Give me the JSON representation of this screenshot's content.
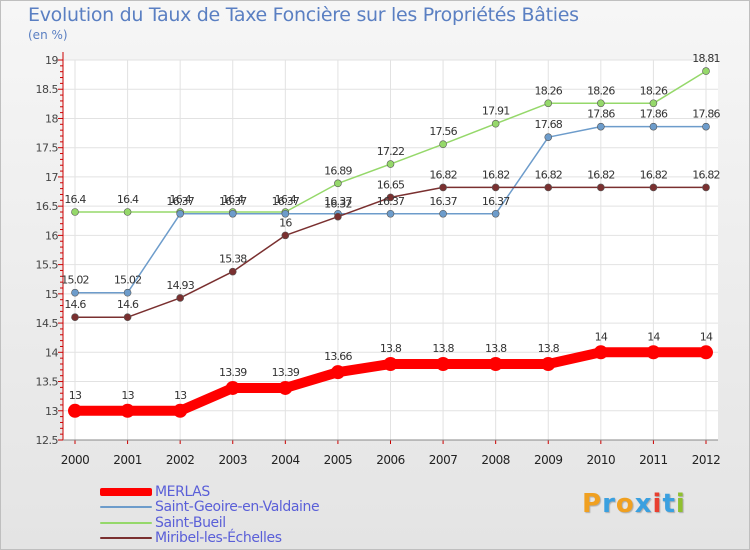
{
  "chart_data": {
    "type": "line",
    "title": "Evolution du Taux de Taxe Foncière sur les Propriétés Bâties",
    "subtitle": "(en %)",
    "x": [
      "2000",
      "2001",
      "2002",
      "2003",
      "2004",
      "2005",
      "2006",
      "2007",
      "2008",
      "2009",
      "2010",
      "2011",
      "2012"
    ],
    "ylim": [
      12.5,
      19
    ],
    "yticks": [
      "12.5",
      "13",
      "13.5",
      "14",
      "14.5",
      "15",
      "15.5",
      "16",
      "16.5",
      "17",
      "17.5",
      "18",
      "18.5",
      "19"
    ],
    "ytick_values": [
      12.5,
      13,
      13.5,
      14,
      14.5,
      15,
      15.5,
      16,
      16.5,
      17,
      17.5,
      18,
      18.5,
      19
    ],
    "grid": true,
    "legend_position": "bottom-left",
    "series": [
      {
        "name": "MERLAS",
        "color": "#ff0000",
        "values": [
          13,
          13,
          13,
          13.39,
          13.39,
          13.66,
          13.8,
          13.8,
          13.8,
          13.8,
          14,
          14,
          14
        ],
        "labels": [
          "13",
          "13",
          "13",
          "13.39",
          "13.39",
          "13.66",
          "13.8",
          "13.8",
          "13.8",
          "13.8",
          "14",
          "14",
          "14"
        ],
        "bold": true
      },
      {
        "name": "Saint-Geoire-en-Valdaine",
        "color": "#6d9ccb",
        "values": [
          15.02,
          15.02,
          16.37,
          16.37,
          16.37,
          16.37,
          16.37,
          16.37,
          16.37,
          17.68,
          17.86,
          17.86,
          17.86
        ],
        "labels": [
          "15.02",
          "15.02",
          "16.37",
          "16.37",
          "16.37",
          "16.37",
          "16.37",
          "16.37",
          "16.37",
          "17.68",
          "17.86",
          "17.86",
          "17.86"
        ],
        "bold": false
      },
      {
        "name": "Saint-Bueil",
        "color": "#95d86a",
        "values": [
          16.4,
          16.4,
          16.4,
          16.4,
          16.4,
          16.89,
          17.22,
          17.56,
          17.91,
          18.26,
          18.26,
          18.26,
          18.81
        ],
        "labels": [
          "16.4",
          "16.4",
          "16.4",
          "16.4",
          "16.4",
          "16.89",
          "17.22",
          "17.56",
          "17.91",
          "18.26",
          "18.26",
          "18.26",
          "18.81"
        ],
        "bold": false
      },
      {
        "name": "Miribel-les-Échelles",
        "color": "#7a3030",
        "values": [
          14.6,
          14.6,
          14.93,
          15.38,
          16,
          16.32,
          16.65,
          16.82,
          16.82,
          16.82,
          16.82,
          16.82,
          16.82
        ],
        "labels": [
          "14.6",
          "14.6",
          "14.93",
          "15.38",
          "16",
          "16.32",
          "16.65",
          "16.82",
          "16.82",
          "16.82",
          "16.82",
          "16.82",
          "16.82"
        ],
        "bold": false
      }
    ]
  },
  "logo": {
    "letters": [
      "P",
      "r",
      "o",
      "x",
      "i",
      "t",
      "i"
    ],
    "colors": [
      "#f0a020",
      "#3aa0e0",
      "#f0a020",
      "#3aa0e0",
      "#e84030",
      "#3aa0e0",
      "#90c030"
    ]
  }
}
